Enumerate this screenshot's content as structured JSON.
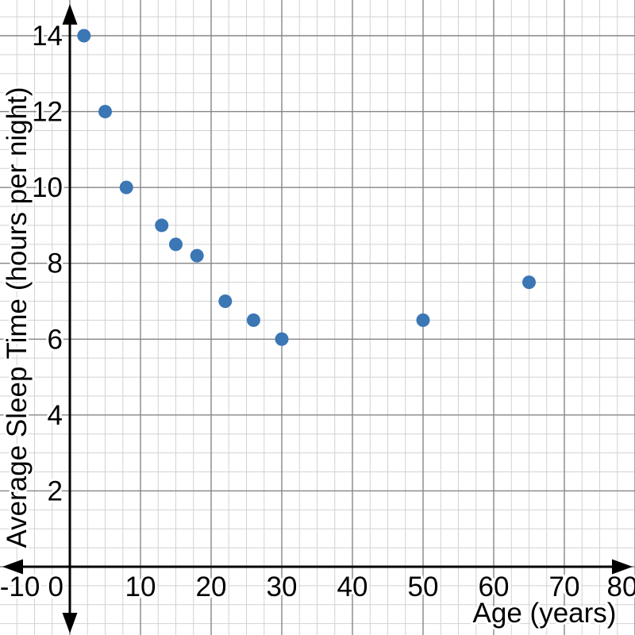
{
  "chart_data": {
    "type": "scatter",
    "title": "",
    "xlabel": "Age (years)",
    "ylabel": "Average Sleep Time (hours per night)",
    "points": [
      {
        "x": 2,
        "y": 14
      },
      {
        "x": 5,
        "y": 12
      },
      {
        "x": 8,
        "y": 10
      },
      {
        "x": 13,
        "y": 9
      },
      {
        "x": 15,
        "y": 8.5
      },
      {
        "x": 18,
        "y": 8.2
      },
      {
        "x": 22,
        "y": 7
      },
      {
        "x": 26,
        "y": 6.5
      },
      {
        "x": 30,
        "y": 6
      },
      {
        "x": 50,
        "y": 6.5
      },
      {
        "x": 65,
        "y": 7.5
      }
    ],
    "x_ticks": [
      -10,
      0,
      10,
      20,
      30,
      40,
      50,
      60,
      70,
      80
    ],
    "y_ticks": [
      2,
      4,
      6,
      8,
      10,
      12,
      14
    ],
    "xlim": [
      -10,
      80
    ],
    "ylim": [
      -1.8,
      15
    ],
    "grid": {
      "on": true,
      "major_x_step": 10,
      "major_y_step": 2,
      "minor_x_step": 2.5,
      "minor_y_step": 0.5
    },
    "legend": "none",
    "colors": {
      "point": "#3b76b5",
      "axis": "#000000",
      "minor_grid": "#d2d2d2",
      "major_grid": "#858585",
      "label_text": "#000000",
      "label_halo": "#ffffff",
      "background": "#ffffff"
    }
  }
}
